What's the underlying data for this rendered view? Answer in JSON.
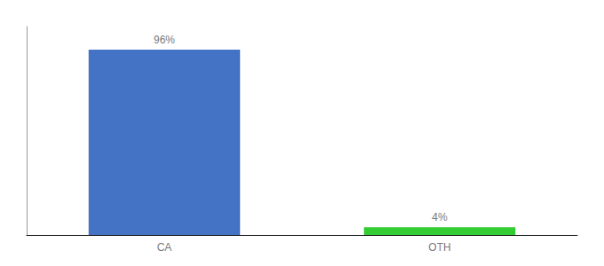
{
  "chart_data": {
    "type": "bar",
    "categories": [
      "CA",
      "OTH"
    ],
    "values": [
      96,
      4
    ],
    "value_labels": [
      "96%",
      "4%"
    ],
    "colors": [
      "#4472C4",
      "#33CC33"
    ],
    "ylim": [
      0,
      108
    ],
    "grid": false,
    "data_labels": true,
    "tick_labels": "x"
  }
}
